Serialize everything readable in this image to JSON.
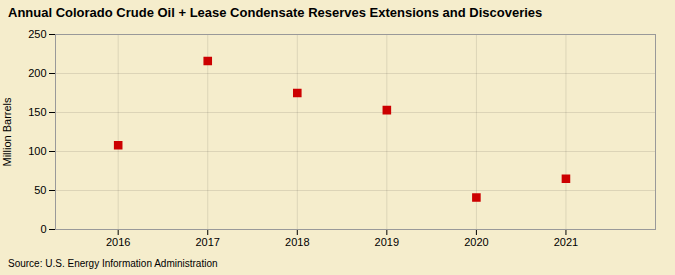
{
  "chart_data": {
    "type": "scatter",
    "title": "Annual Colorado Crude Oil + Lease Condensate Reserves Extensions and Discoveries",
    "ylabel": "Million Barrels",
    "source": "Source: U.S. Energy Information Administration",
    "x": [
      2016,
      2017,
      2018,
      2019,
      2020,
      2021
    ],
    "values": [
      108,
      216,
      175,
      153,
      41,
      65
    ],
    "color": "#CC0000",
    "marker": "square",
    "background_color": "#F5EDCC",
    "xlim": [
      2015.3,
      2022.0
    ],
    "xticks": [
      2016,
      2017,
      2018,
      2019,
      2020,
      2021
    ],
    "ylim": [
      0,
      250
    ],
    "yticks": [
      0,
      50,
      100,
      150,
      200,
      250
    ],
    "grid": true
  }
}
